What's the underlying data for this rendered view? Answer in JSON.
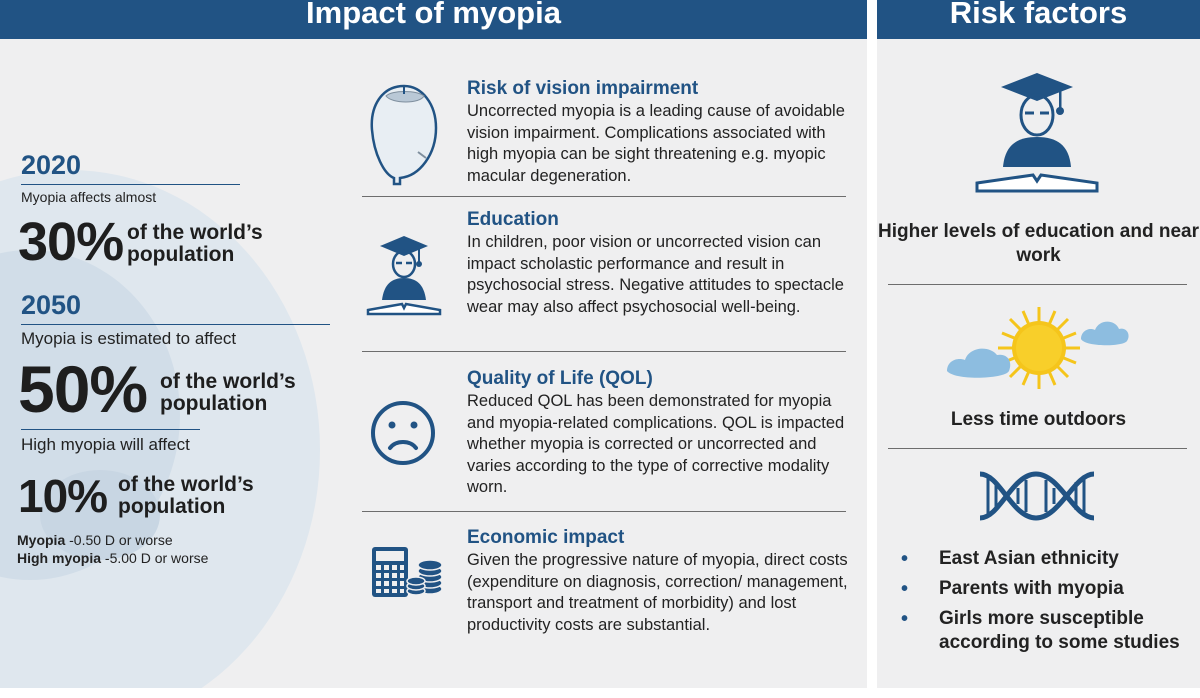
{
  "impact": {
    "header": "Impact of myopia",
    "stats": {
      "year_2020": "2020",
      "affects_2020": "Myopia affects almost",
      "pct_30": "30%",
      "pct_30_text": "of the world’s population",
      "year_2050": "2050",
      "affects_2050": "Myopia is estimated to affect",
      "pct_50": "50%",
      "pct_50_text": "of the world’s population",
      "high_affects": "High myopia will affect",
      "pct_10": "10%",
      "pct_10_text": "of the world’s population",
      "def_myopia_label": "Myopia",
      "def_myopia_value": " -0.50 D or worse",
      "def_high_label": "High myopia",
      "def_high_value": " -5.00 D or worse"
    },
    "items": [
      {
        "title": "Risk of vision impairment",
        "body": "Uncorrected myopia is a leading cause of avoidable vision impairment. Complications associated with high myopia can be sight threatening e.g. myopic macular degeneration.",
        "icon": "eye-cross-section-icon"
      },
      {
        "title": "Education",
        "body": "In children, poor vision or uncorrected vision can impact scholastic performance and result in psychosocial stress. Negative attitudes to spectacle wear may also affect psychosocial well-being.",
        "icon": "graduate-reading-icon"
      },
      {
        "title": "Quality of Life (QOL)",
        "body": "Reduced QOL has been demonstrated for myopia and myopia-related complications. QOL is impacted whether myopia is corrected or uncorrected and varies according to the type of corrective modality worn.",
        "icon": "sad-face-icon"
      },
      {
        "title": "Economic impact",
        "body": "Given the progressive nature of myopia, direct costs (expenditure on diagnosis, correction/ management, transport and treatment of morbidity) and lost productivity costs are substantial.",
        "icon": "calculator-coins-icon"
      }
    ]
  },
  "risk": {
    "header": "Risk factors",
    "education_label": "Higher levels of education and near work",
    "outdoors_label": "Less time outdoors",
    "bullets": [
      "East Asian ethnicity",
      "Parents with myopia",
      "Girls more susceptible according to some studies"
    ],
    "icons": [
      "graduate-reading-icon",
      "sun-clouds-icon",
      "dna-icon"
    ]
  },
  "colors": {
    "header_blue": "#215384",
    "panel_gray": "#efeff0",
    "sun_yellow": "#f5c51b",
    "cloud_blue": "#8dbde0"
  }
}
